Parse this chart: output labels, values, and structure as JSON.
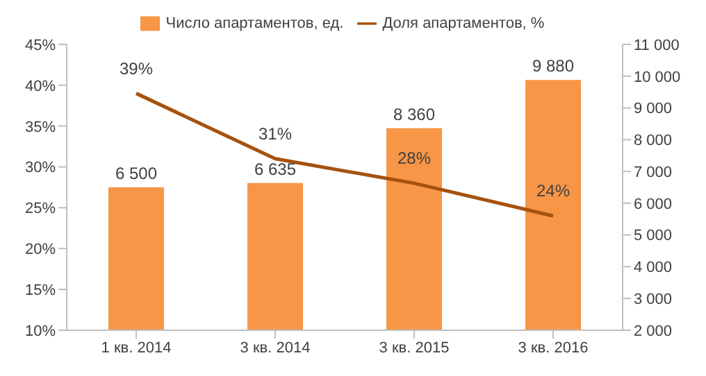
{
  "chart_data": {
    "type": "bar",
    "categories": [
      "1 кв. 2014",
      "3 кв. 2014",
      "3 кв. 2015",
      "3 кв. 2016"
    ],
    "series": [
      {
        "name": "Число апартаментов, ед.",
        "axis": "y2",
        "color": "#f79646",
        "values": [
          6500,
          6635,
          8360,
          9880
        ],
        "value_labels": [
          "6 500",
          "6 635",
          "8 360",
          "9 880"
        ]
      },
      {
        "name": "Доля апартаментов, %",
        "type": "line",
        "axis": "y",
        "color": "#a5520f",
        "values": [
          39,
          31,
          28,
          24
        ],
        "value_labels": [
          "39%",
          "31%",
          "28%",
          "24%"
        ]
      }
    ],
    "ylim": [
      10,
      45
    ],
    "yticks": [
      {
        "value": 10,
        "label": "10%"
      },
      {
        "value": 15,
        "label": "15%"
      },
      {
        "value": 20,
        "label": "20%"
      },
      {
        "value": 25,
        "label": "25%"
      },
      {
        "value": 30,
        "label": "30%"
      },
      {
        "value": 35,
        "label": "35%"
      },
      {
        "value": 40,
        "label": "40%"
      },
      {
        "value": 45,
        "label": "45%"
      }
    ],
    "y2lim": [
      2000,
      11000
    ],
    "y2ticks": [
      {
        "value": 2000,
        "label": "2 000"
      },
      {
        "value": 3000,
        "label": "3 000"
      },
      {
        "value": 4000,
        "label": "4 000"
      },
      {
        "value": 5000,
        "label": "5 000"
      },
      {
        "value": 6000,
        "label": "6 000"
      },
      {
        "value": 7000,
        "label": "7 000"
      },
      {
        "value": 8000,
        "label": "8 000"
      },
      {
        "value": 9000,
        "label": "9 000"
      },
      {
        "value": 10000,
        "label": "10 000"
      },
      {
        "value": 11000,
        "label": "11 000"
      }
    ],
    "grid": false,
    "legend": "top",
    "marker": "none",
    "line_style": "solid"
  }
}
